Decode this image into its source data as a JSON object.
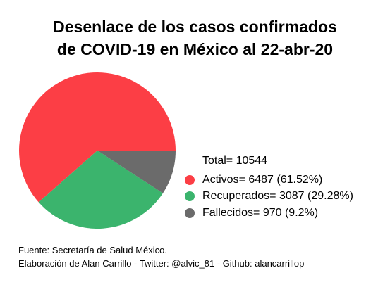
{
  "chart_data": {
    "type": "pie",
    "title_lines": [
      "Desenlace de los casos confirmados",
      "de COVID-19 en México al 22-abr-20"
    ],
    "categories": [
      "Activos",
      "Recuperados",
      "Fallecidos"
    ],
    "values": [
      6487,
      3087,
      970
    ],
    "percentages": [
      61.52,
      29.28,
      9.2
    ],
    "colors": [
      "#fc3e45",
      "#3bb46d",
      "#6b6b6b"
    ],
    "total_label": "Total= 10544",
    "legend_labels": [
      "Activos= 6487 (61.52%)",
      "Recuperados= 3087 (29.28%)",
      "Fallecidos= 970 (9.2%)"
    ],
    "legend_placement": "right"
  },
  "footer": {
    "source_line": "Fuente: Secretaría de Salud México.",
    "credit_line": "Elaboración de Alan Carrillo - Twitter: @alvic_81 - Github: alancarrillop"
  }
}
